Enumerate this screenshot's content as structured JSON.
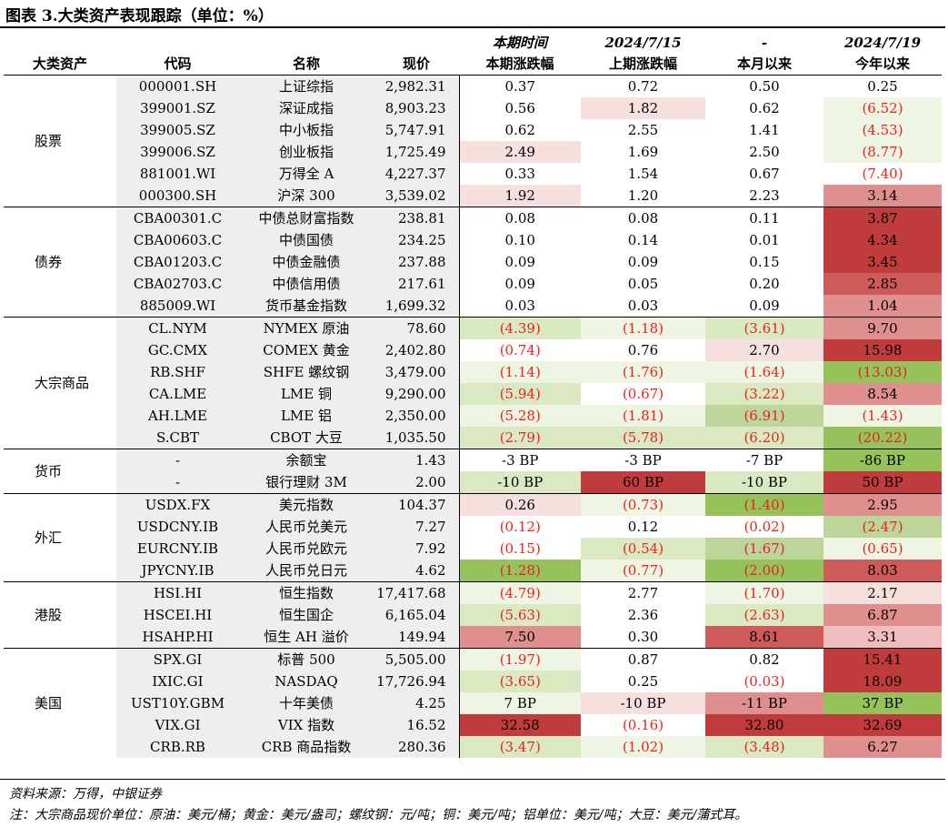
{
  "title": "图表 3.大类资产表现跟踪（单位：%）",
  "headers": {
    "top": [
      "",
      "",
      "",
      "",
      "本期时间",
      "2024/7/15",
      "-",
      "2024/7/19"
    ],
    "bottom": [
      "大类资产",
      "代码",
      "名称",
      "现价",
      "本期涨跌幅",
      "上期涨跌幅",
      "本月以来",
      "今年以来"
    ]
  },
  "groups": [
    {
      "name": "股票",
      "rows": [
        {
          "code": "000001.SH",
          "name": "上证综指",
          "price": "2,982.31",
          "v": [
            "0.37",
            "0.72",
            "0.50",
            "0.25"
          ]
        },
        {
          "code": "399001.SZ",
          "name": "深证成指",
          "price": "8,903.23",
          "v": [
            "0.56",
            "1.82",
            "0.62",
            "(6.52)"
          ]
        },
        {
          "code": "399005.SZ",
          "name": "中小板指",
          "price": "5,747.91",
          "v": [
            "0.62",
            "2.55",
            "1.41",
            "(4.53)"
          ]
        },
        {
          "code": "399006.SZ",
          "name": "创业板指",
          "price": "1,725.49",
          "v": [
            "2.49",
            "1.69",
            "2.50",
            "(8.77)"
          ]
        },
        {
          "code": "881001.WI",
          "name": "万得全 A",
          "price": "4,227.37",
          "v": [
            "0.33",
            "1.54",
            "0.67",
            "(7.40)"
          ]
        },
        {
          "code": "000300.SH",
          "name": "沪深 300",
          "price": "3,539.02",
          "v": [
            "1.92",
            "1.20",
            "2.23",
            "3.14"
          ]
        }
      ]
    },
    {
      "name": "债券",
      "rows": [
        {
          "code": "CBA00301.C",
          "name": "中债总财富指数",
          "price": "238.81",
          "v": [
            "0.08",
            "0.08",
            "0.11",
            "3.87"
          ]
        },
        {
          "code": "CBA00603.C",
          "name": "中债国债",
          "price": "234.25",
          "v": [
            "0.10",
            "0.14",
            "0.01",
            "4.34"
          ]
        },
        {
          "code": "CBA01203.C",
          "name": "中债金融债",
          "price": "237.88",
          "v": [
            "0.09",
            "0.09",
            "0.15",
            "3.45"
          ]
        },
        {
          "code": "CBA02703.C",
          "name": "中债信用债",
          "price": "217.61",
          "v": [
            "0.09",
            "0.05",
            "0.20",
            "2.85"
          ]
        },
        {
          "code": "885009.WI",
          "name": "货币基金指数",
          "price": "1,699.32",
          "v": [
            "0.03",
            "0.03",
            "0.09",
            "1.04"
          ]
        }
      ]
    },
    {
      "name": "大宗商品",
      "rows": [
        {
          "code": "CL.NYM",
          "name": "NYMEX 原油",
          "price": "78.60",
          "v": [
            "(4.39)",
            "(1.18)",
            "(3.61)",
            "9.70"
          ]
        },
        {
          "code": "GC.CMX",
          "name": "COMEX 黄金",
          "price": "2,402.80",
          "v": [
            "(0.74)",
            "0.76",
            "2.70",
            "15.98"
          ]
        },
        {
          "code": "RB.SHF",
          "name": "SHFE 螺纹钢",
          "price": "3,479.00",
          "v": [
            "(1.14)",
            "(1.76)",
            "(1.64)",
            "(13.03)"
          ]
        },
        {
          "code": "CA.LME",
          "name": "LME 铜",
          "price": "9,290.00",
          "v": [
            "(5.94)",
            "(0.67)",
            "(3.22)",
            "8.54"
          ]
        },
        {
          "code": "AH.LME",
          "name": "LME 铝",
          "price": "2,350.00",
          "v": [
            "(5.28)",
            "(1.81)",
            "(6.91)",
            "(1.43)"
          ]
        },
        {
          "code": "S.CBT",
          "name": "CBOT 大豆",
          "price": "1,035.50",
          "v": [
            "(2.79)",
            "(5.78)",
            "(6.20)",
            "(20.22)"
          ]
        }
      ]
    },
    {
      "name": "货币",
      "rows": [
        {
          "code": "-",
          "name": "余额宝",
          "price": "1.43",
          "v": [
            "-3 BP",
            "-3 BP",
            "-7 BP",
            "-86 BP"
          ]
        },
        {
          "code": "-",
          "name": "银行理财 3M",
          "price": "2.00",
          "v": [
            "-10 BP",
            "60 BP",
            "-10 BP",
            "50 BP"
          ]
        }
      ]
    },
    {
      "name": "外汇",
      "rows": [
        {
          "code": "USDX.FX",
          "name": "美元指数",
          "price": "104.37",
          "v": [
            "0.26",
            "(0.73)",
            "(1.40)",
            "2.95"
          ]
        },
        {
          "code": "USDCNY.IB",
          "name": "人民币兑美元",
          "price": "7.27",
          "v": [
            "(0.12)",
            "0.12",
            "(0.02)",
            "(2.47)"
          ]
        },
        {
          "code": "EURCNY.IB",
          "name": "人民币兑欧元",
          "price": "7.92",
          "v": [
            "(0.15)",
            "(0.54)",
            "(1.67)",
            "(0.65)"
          ]
        },
        {
          "code": "JPYCNY.IB",
          "name": "人民币兑日元",
          "price": "4.62",
          "v": [
            "(1.28)",
            "(0.77)",
            "(2.00)",
            "8.03"
          ]
        }
      ]
    },
    {
      "name": "港股",
      "rows": [
        {
          "code": "HSI.HI",
          "name": "恒生指数",
          "price": "17,417.68",
          "v": [
            "(4.79)",
            "2.77",
            "(1.70)",
            "2.17"
          ]
        },
        {
          "code": "HSCEI.HI",
          "name": "恒生国企",
          "price": "6,165.04",
          "v": [
            "(5.63)",
            "2.36",
            "(2.63)",
            "6.87"
          ]
        },
        {
          "code": "HSAHP.HI",
          "name": "恒生 AH 溢价",
          "price": "149.94",
          "v": [
            "7.50",
            "0.30",
            "8.61",
            "3.31"
          ]
        }
      ]
    },
    {
      "name": "美国",
      "rows": [
        {
          "code": "SPX.GI",
          "name": "标普 500",
          "price": "5,505.00",
          "v": [
            "(1.97)",
            "0.87",
            "0.82",
            "15.41"
          ]
        },
        {
          "code": "IXIC.GI",
          "name": "NASDAQ",
          "price": "17,726.94",
          "v": [
            "(3.65)",
            "0.25",
            "(0.03)",
            "18.09"
          ]
        },
        {
          "code": "UST10Y.GBM",
          "name": "十年美债",
          "price": "4.25",
          "v": [
            "7 BP",
            "-10 BP",
            "-11 BP",
            "37 BP"
          ]
        },
        {
          "code": "VIX.GI",
          "name": "VIX 指数",
          "price": "16.52",
          "v": [
            "32.58",
            "(0.16)",
            "32.80",
            "32.69"
          ]
        },
        {
          "code": "CRB.RB",
          "name": "CRB 商品指数",
          "price": "280.36",
          "v": [
            "(3.47)",
            "(1.02)",
            "(3.48)",
            "6.27"
          ]
        }
      ]
    }
  ],
  "colors": {
    "negative_text": "#e8211c",
    "g1": "#eff5e3",
    "g2": "#dbe9c3",
    "g3": "#bcd59a",
    "g4": "#96c25c",
    "r1": "#f6dfdf",
    "r2": "#eebebe",
    "r3": "#e08f8f",
    "r4": "#cf5a5a",
    "r5": "#c03c3c",
    "shade": "#eeeeee"
  },
  "source": "资料来源：万得，中银证券",
  "note": "注：大宗商品现价单位：原油：美元/桶；黄金：美元/盎司；螺纹钢：元/吨；铜：美元/吨；铝单位：美元/吨；大豆：美元/蒲式耳。"
}
